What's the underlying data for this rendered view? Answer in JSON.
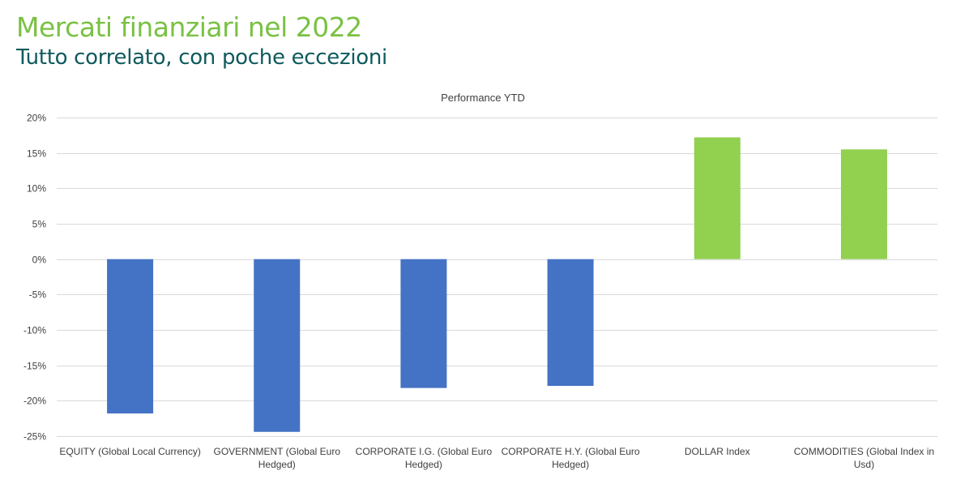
{
  "header": {
    "title": "Mercati finanziari nel 2022",
    "subtitle": "Tutto correlato, con poche eccezioni"
  },
  "colors": {
    "title": "#7ac143",
    "subtitle": "#0f5a5e",
    "negative_bar": "#4472c4",
    "positive_bar": "#92d050",
    "gridline": "#d9d9d9",
    "axis_text": "#404040"
  },
  "chart_data": {
    "type": "bar",
    "title": "Performance YTD",
    "xlabel": "",
    "ylabel": "",
    "ylim": [
      -25,
      20
    ],
    "yticks": [
      20,
      15,
      10,
      5,
      0,
      -5,
      -10,
      -15,
      -20,
      -25
    ],
    "ytick_labels": [
      "20%",
      "15%",
      "10%",
      "5%",
      "0%",
      "-5%",
      "-10%",
      "-15%",
      "-20%",
      "-25%"
    ],
    "grid": true,
    "legend": "none",
    "categories": [
      [
        "EQUITY (Global Local Currency)"
      ],
      [
        "GOVERNMENT (Global Euro",
        "Hedged)"
      ],
      [
        "CORPORATE I.G. (Global Euro",
        "Hedged)"
      ],
      [
        "CORPORATE H.Y. (Global Euro",
        "Hedged)"
      ],
      [
        "DOLLAR Index"
      ],
      [
        "COMMODITIES (Global Index in",
        "Usd)"
      ]
    ],
    "values": [
      -21.8,
      -24.4,
      -18.2,
      -17.9,
      17.2,
      15.5
    ],
    "bar_colors": [
      "#4472c4",
      "#4472c4",
      "#4472c4",
      "#4472c4",
      "#92d050",
      "#92d050"
    ]
  }
}
